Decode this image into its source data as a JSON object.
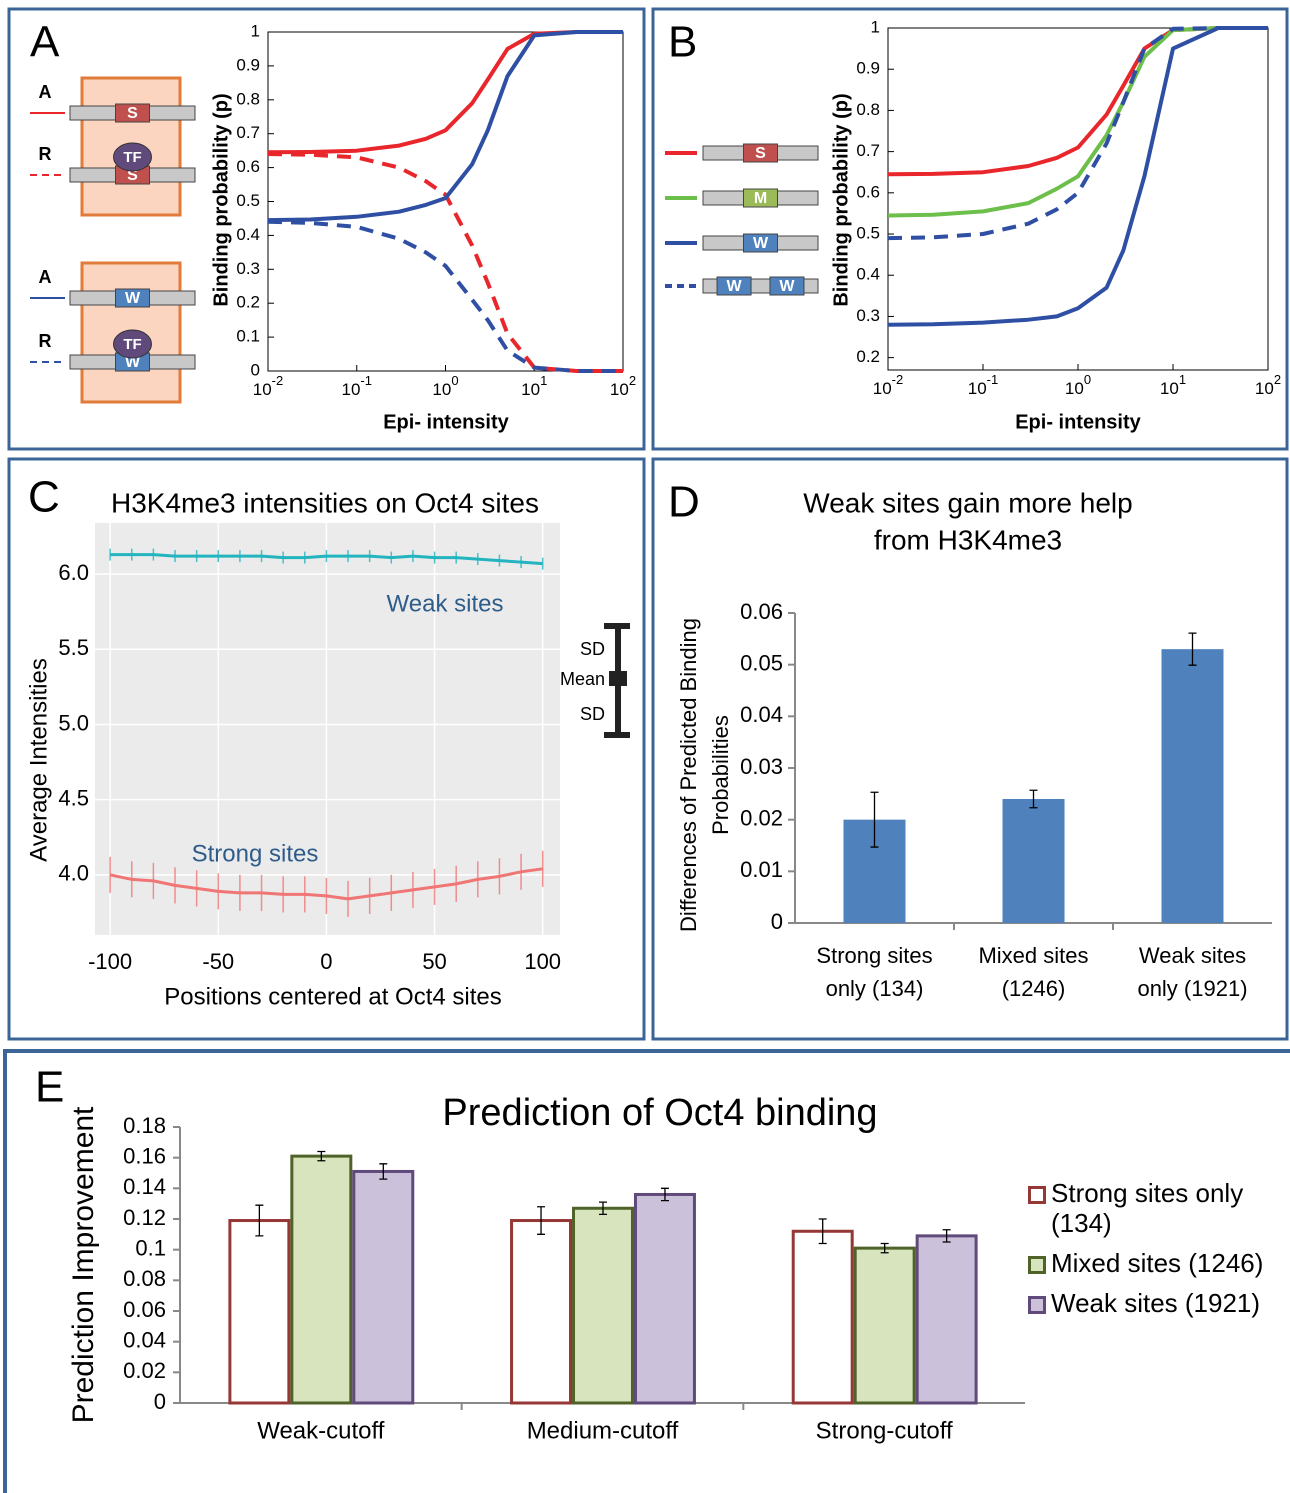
{
  "chart_data": [
    {
      "type": "line",
      "panel": "A",
      "xlabel": "Epi- intensity",
      "ylabel": "Binding probability (p)",
      "xscale": "log",
      "xlim": [
        0.01,
        100
      ],
      "ylim": [
        0,
        1
      ],
      "xticks": [
        {
          "value": 0.01,
          "label": "10",
          "exponent": "-2"
        },
        {
          "value": 0.1,
          "label": "10",
          "exponent": "-1"
        },
        {
          "value": 1,
          "label": "10",
          "exponent": "0"
        },
        {
          "value": 10,
          "label": "10",
          "exponent": "1"
        },
        {
          "value": 100,
          "label": "10",
          "exponent": "2"
        }
      ],
      "yticks": [
        0,
        0.1,
        0.2,
        0.3,
        0.4,
        0.5,
        0.6,
        0.7,
        0.8,
        0.9,
        1
      ],
      "x": [
        0.01,
        0.03,
        0.1,
        0.3,
        0.6,
        1,
        2,
        3,
        5,
        10,
        30,
        100
      ],
      "series": [
        {
          "color": "#e8262b",
          "dash": false,
          "values": [
            0.645,
            0.646,
            0.65,
            0.665,
            0.685,
            0.71,
            0.79,
            0.86,
            0.95,
            0.995,
            1,
            1
          ]
        },
        {
          "color": "#e8262b",
          "dash": true,
          "values": [
            0.64,
            0.638,
            0.63,
            0.6,
            0.56,
            0.52,
            0.37,
            0.26,
            0.11,
            0.01,
            0,
            0
          ]
        },
        {
          "color": "#2e4fa3",
          "dash": false,
          "values": [
            0.445,
            0.447,
            0.455,
            0.47,
            0.49,
            0.51,
            0.61,
            0.71,
            0.87,
            0.99,
            1,
            1
          ]
        },
        {
          "color": "#2e4fa3",
          "dash": true,
          "values": [
            0.44,
            0.437,
            0.425,
            0.39,
            0.35,
            0.31,
            0.21,
            0.15,
            0.06,
            0.01,
            0,
            0
          ]
        }
      ],
      "diagram": [
        {
          "rows": [
            {
              "label": "A",
              "sites": [
                {
                  "text": "S",
                  "color": "#c0504d"
                }
              ]
            },
            {
              "label": "R",
              "tf": "TF",
              "sites": [
                {
                  "text": "S",
                  "color": "#c0504d"
                }
              ]
            }
          ]
        },
        {
          "rows": [
            {
              "label": "A",
              "sites": [
                {
                  "text": "W",
                  "color": "#4f81bd"
                }
              ]
            },
            {
              "label": "R",
              "tf": "TF",
              "sites": [
                {
                  "text": "W",
                  "color": "#4f81bd"
                }
              ]
            }
          ]
        }
      ]
    },
    {
      "type": "line",
      "panel": "B",
      "xlabel": "Epi- intensity",
      "ylabel": "Binding probability (p)",
      "xscale": "log",
      "xlim": [
        0.01,
        100
      ],
      "ylim": [
        0.17,
        1
      ],
      "xticks": [
        {
          "value": 0.01,
          "label": "10",
          "exponent": "-2"
        },
        {
          "value": 0.1,
          "label": "10",
          "exponent": "-1"
        },
        {
          "value": 1,
          "label": "10",
          "exponent": "0"
        },
        {
          "value": 10,
          "label": "10",
          "exponent": "1"
        },
        {
          "value": 100,
          "label": "10",
          "exponent": "2"
        }
      ],
      "yticks": [
        0.2,
        0.3,
        0.4,
        0.5,
        0.6,
        0.7,
        0.8,
        0.9,
        1
      ],
      "x": [
        0.01,
        0.03,
        0.1,
        0.3,
        0.6,
        1,
        2,
        3,
        5,
        10,
        30,
        100
      ],
      "series": [
        {
          "color": "#e8262b",
          "dash": false,
          "values": [
            0.645,
            0.646,
            0.65,
            0.665,
            0.685,
            0.71,
            0.79,
            0.86,
            0.95,
            0.995,
            1,
            1
          ]
        },
        {
          "color": "#6cbf4a",
          "dash": false,
          "values": [
            0.545,
            0.547,
            0.555,
            0.575,
            0.61,
            0.64,
            0.74,
            0.82,
            0.93,
            0.995,
            1,
            1
          ]
        },
        {
          "color": "#2e4fa3",
          "dash": false,
          "values": [
            0.28,
            0.281,
            0.285,
            0.292,
            0.3,
            0.32,
            0.37,
            0.46,
            0.64,
            0.95,
            1,
            1
          ]
        },
        {
          "color": "#2e4fa3",
          "dash": true,
          "values": [
            0.49,
            0.492,
            0.5,
            0.525,
            0.56,
            0.6,
            0.72,
            0.82,
            0.95,
            0.998,
            1,
            1
          ]
        }
      ],
      "diagram": [
        {
          "rows": [
            {
              "sites": [
                {
                  "text": "S",
                  "color": "#c0504d"
                }
              ]
            },
            {
              "sites": [
                {
                  "text": "M",
                  "color": "#9bbb59"
                }
              ]
            },
            {
              "sites": [
                {
                  "text": "W",
                  "color": "#4f81bd"
                }
              ]
            },
            {
              "sites": [
                {
                  "text": "W",
                  "color": "#4f81bd"
                },
                {
                  "text": "W",
                  "color": "#4f81bd"
                }
              ]
            }
          ]
        }
      ]
    },
    {
      "type": "line",
      "panel": "C",
      "title": "H3K4me3 intensities on Oct4 sites",
      "xlabel": "Positions centered at Oct4 sites",
      "ylabel": "Average Intensities",
      "xlim": [
        -107,
        108
      ],
      "ylim": [
        3.6,
        6.34
      ],
      "grid": true,
      "xticks": [
        -100,
        -50,
        0,
        50,
        100
      ],
      "yticks": [
        {
          "value": 4,
          "label": "4.0"
        },
        4.5,
        {
          "value": 5,
          "label": "5.0"
        },
        5.5,
        {
          "value": 6,
          "label": "6.0"
        }
      ],
      "x": [
        -100,
        -90,
        -80,
        -70,
        -60,
        -50,
        -40,
        -30,
        -20,
        -10,
        0,
        10,
        20,
        30,
        40,
        50,
        60,
        70,
        80,
        90,
        100
      ],
      "series": [
        {
          "color": "#22b5c0",
          "values": [
            6.13,
            6.13,
            6.13,
            6.12,
            6.12,
            6.12,
            6.12,
            6.12,
            6.11,
            6.11,
            6.12,
            6.12,
            6.12,
            6.11,
            6.12,
            6.11,
            6.11,
            6.1,
            6.09,
            6.08,
            6.07
          ],
          "errors": [
            0.04,
            0.04,
            0.04,
            0.04,
            0.04,
            0.04,
            0.04,
            0.04,
            0.04,
            0.04,
            0.04,
            0.04,
            0.04,
            0.04,
            0.04,
            0.04,
            0.04,
            0.04,
            0.04,
            0.04,
            0.04
          ]
        },
        {
          "color": "#f07575",
          "values": [
            4.0,
            3.97,
            3.96,
            3.93,
            3.91,
            3.89,
            3.88,
            3.88,
            3.87,
            3.87,
            3.86,
            3.84,
            3.86,
            3.88,
            3.9,
            3.92,
            3.94,
            3.97,
            3.99,
            4.02,
            4.04
          ],
          "errors": [
            0.12,
            0.12,
            0.12,
            0.12,
            0.12,
            0.12,
            0.12,
            0.12,
            0.12,
            0.12,
            0.12,
            0.12,
            0.12,
            0.12,
            0.12,
            0.12,
            0.12,
            0.12,
            0.12,
            0.12,
            0.12
          ]
        }
      ],
      "annotations": [
        {
          "text": "Weak sites"
        },
        {
          "text": "Strong sites"
        }
      ],
      "error_legend": [
        "SD",
        "Mean",
        "SD"
      ]
    },
    {
      "type": "bar",
      "panel": "D",
      "title": [
        "Weak sites gain more help",
        "from H3K4me3"
      ],
      "ylabel": [
        "Differences of Predicted Binding",
        "Probabilities"
      ],
      "ylim": [
        0,
        0.06
      ],
      "yticks": [
        0,
        0.01,
        0.02,
        0.03,
        0.04,
        0.05,
        0.06
      ],
      "categories": [
        [
          "Strong sites",
          "only (134)"
        ],
        [
          "Mixed sites",
          "(1246)"
        ],
        [
          "Weak sites",
          "only (1921)"
        ]
      ],
      "series": [
        {
          "color": "#4f81bd",
          "fill": "#4f81bd",
          "values": [
            0.02,
            0.024,
            0.053
          ],
          "errors": [
            0.0053,
            0.0017,
            0.0031
          ]
        }
      ]
    },
    {
      "type": "bar",
      "panel": "E",
      "title": "Prediction of Oct4 binding",
      "ylabel": "Prediction Improvement",
      "ylim": [
        0,
        0.18
      ],
      "yticks": [
        0,
        0.02,
        0.04,
        0.06,
        0.08,
        0.1,
        0.12,
        0.14,
        0.16,
        0.18
      ],
      "categories": [
        "Weak-cutoff",
        "Medium-cutoff",
        "Strong-cutoff"
      ],
      "series": [
        {
          "name": "Strong sites only (134)",
          "color": "#953735",
          "fill": "#ffffff",
          "values": [
            0.119,
            0.119,
            0.112
          ],
          "errors": [
            0.01,
            0.009,
            0.008
          ]
        },
        {
          "name": "Mixed sites (1246)",
          "color": "#4f6228",
          "fill": "#d7e4bd",
          "values": [
            0.161,
            0.127,
            0.101
          ],
          "errors": [
            0.003,
            0.004,
            0.003
          ]
        },
        {
          "name": "Weak sites (1921)",
          "color": "#604a7b",
          "fill": "#ccc1da",
          "values": [
            0.151,
            0.136,
            0.109
          ],
          "errors": [
            0.005,
            0.004,
            0.004
          ]
        }
      ]
    }
  ]
}
